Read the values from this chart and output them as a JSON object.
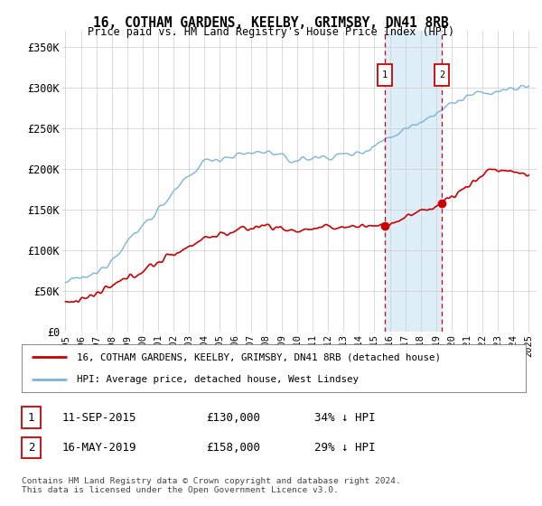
{
  "title": "16, COTHAM GARDENS, KEELBY, GRIMSBY, DN41 8RB",
  "subtitle": "Price paid vs. HM Land Registry's House Price Index (HPI)",
  "ylabel_ticks": [
    "£0",
    "£50K",
    "£100K",
    "£150K",
    "£200K",
    "£250K",
    "£300K",
    "£350K"
  ],
  "ytick_values": [
    0,
    50000,
    100000,
    150000,
    200000,
    250000,
    300000,
    350000
  ],
  "ylim": [
    0,
    370000
  ],
  "xlim_start": 1994.8,
  "xlim_end": 2025.5,
  "sale1_x": 2015.69,
  "sale1_y": 130000,
  "sale1_label": "1",
  "sale2_x": 2019.37,
  "sale2_y": 158000,
  "sale2_label": "2",
  "hpi_color": "#7ab5d8",
  "price_color": "#cc0000",
  "shade_color": "#ddeef8",
  "marker_border_color": "#cc0000",
  "grid_color": "#cccccc",
  "background_color": "#ffffff",
  "legend_line1": "16, COTHAM GARDENS, KEELBY, GRIMSBY, DN41 8RB (detached house)",
  "legend_line2": "HPI: Average price, detached house, West Lindsey",
  "note_line1": "Contains HM Land Registry data © Crown copyright and database right 2024.",
  "note_line2": "This data is licensed under the Open Government Licence v3.0.",
  "xtick_years": [
    1995,
    1996,
    1997,
    1998,
    1999,
    2000,
    2001,
    2002,
    2003,
    2004,
    2005,
    2006,
    2007,
    2008,
    2009,
    2010,
    2011,
    2012,
    2013,
    2014,
    2015,
    2016,
    2017,
    2018,
    2019,
    2020,
    2021,
    2022,
    2023,
    2024,
    2025
  ]
}
